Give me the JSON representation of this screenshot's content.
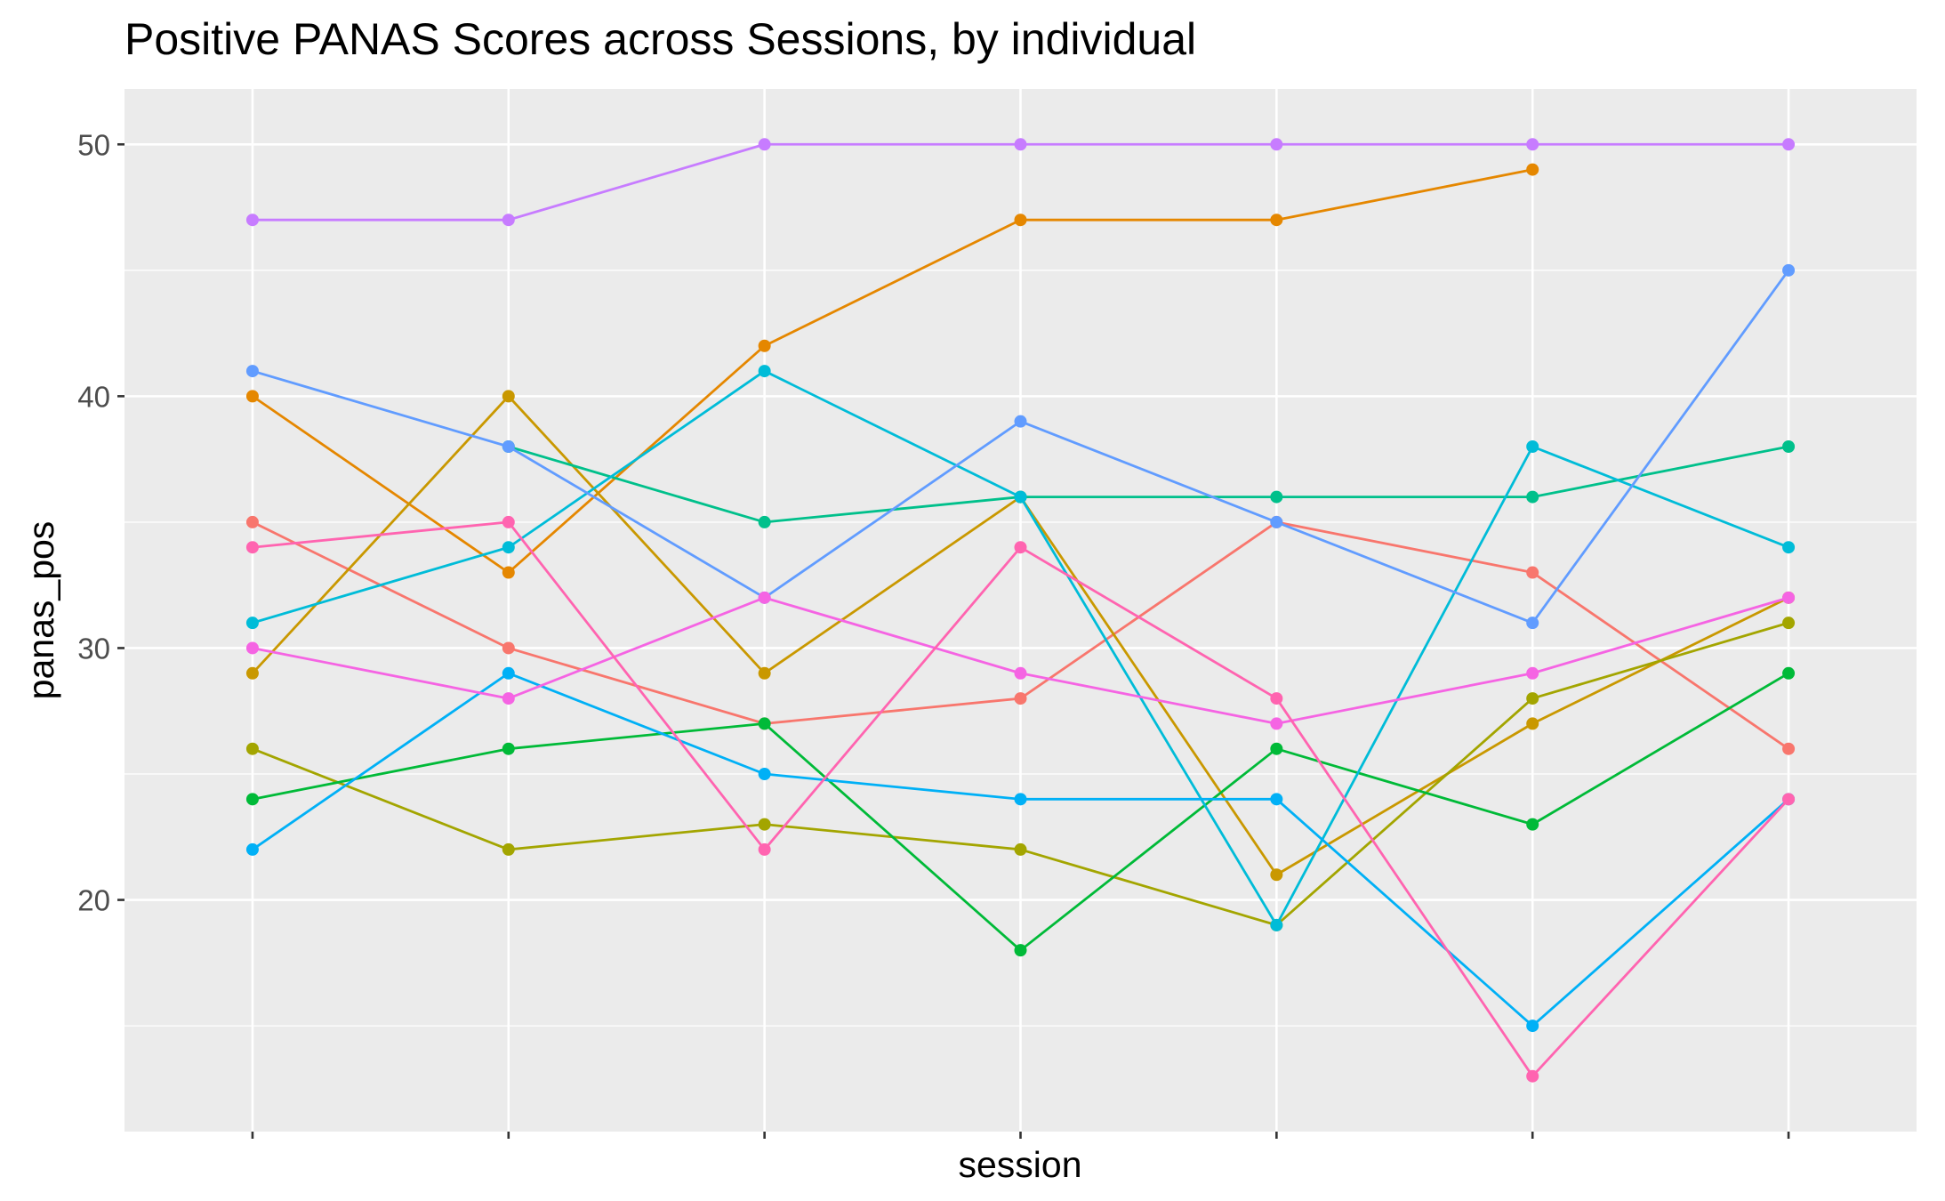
{
  "chart_data": {
    "type": "line",
    "title": "Positive PANAS Scores across Sessions, by individual",
    "xlabel": "session",
    "ylabel": "panas_pos",
    "ylim": [
      10.8,
      52.2
    ],
    "y_ticks": [
      20,
      30,
      40,
      50
    ],
    "x": [
      1,
      2,
      3,
      4,
      5,
      6,
      7
    ],
    "x_tick_labels_shown": false,
    "grid": true,
    "legend": "none",
    "series": [
      {
        "color": "#F8766D",
        "values": [
          35,
          30,
          27,
          28,
          35,
          33,
          26
        ]
      },
      {
        "color": "#E58700",
        "values": [
          40,
          33,
          42,
          47,
          47,
          49,
          null
        ]
      },
      {
        "color": "#C99800",
        "values": [
          29,
          40,
          29,
          36,
          21,
          27,
          32
        ]
      },
      {
        "color": "#A3A500",
        "values": [
          26,
          22,
          23,
          22,
          19,
          28,
          31
        ]
      },
      {
        "color": "#00BA38",
        "values": [
          24,
          26,
          27,
          18,
          26,
          23,
          29
        ]
      },
      {
        "color": "#00C08B",
        "values": [
          null,
          38,
          35,
          36,
          36,
          36,
          38
        ]
      },
      {
        "color": "#00BCD8",
        "values": [
          31,
          34,
          41,
          36,
          19,
          38,
          34
        ]
      },
      {
        "color": "#00B0F6",
        "values": [
          22,
          29,
          25,
          24,
          24,
          15,
          24
        ]
      },
      {
        "color": "#619CFF",
        "values": [
          41,
          38,
          32,
          39,
          35,
          31,
          45
        ]
      },
      {
        "color": "#C77CFF",
        "values": [
          47,
          47,
          50,
          50,
          50,
          50,
          50
        ]
      },
      {
        "color": "#F564E3",
        "values": [
          30,
          28,
          32,
          29,
          27,
          29,
          32
        ]
      },
      {
        "color": "#FF64B0",
        "values": [
          34,
          35,
          22,
          34,
          28,
          13,
          24
        ]
      }
    ]
  }
}
